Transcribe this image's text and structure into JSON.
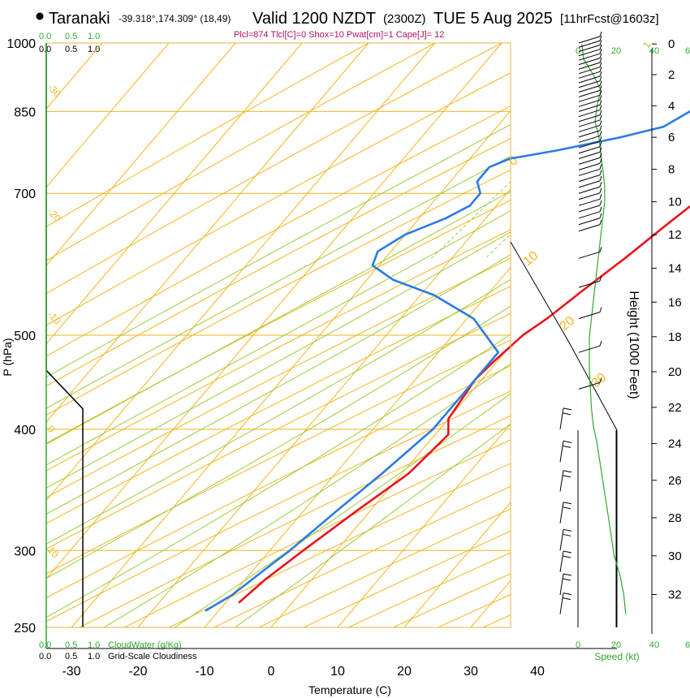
{
  "header": {
    "station": "Taranaki",
    "coords": "-39.318°,174.309° (18,49)",
    "valid": "Valid 1200 NZDT",
    "zulu": "(2300Z)",
    "date": "TUE 5 Aug 2025",
    "forecast": "[11hrFcst@1603z]",
    "params": "Plcl=874 Tlcl[C]=0 Shox=10 Pwat[cm]=1 Cape[J]= 12"
  },
  "colors": {
    "temperature": "#e8141c",
    "dewpoint": "#2b7be3",
    "isotherm": "#f2b51e",
    "dry_adiabat": "#f2b51e",
    "moist_adiabat": "#9bcc3c",
    "mixing_ratio": "#9bcc3c",
    "green_label": "#2ea82e",
    "parcel": "#8a2c8a",
    "cloud": "#000000",
    "params": "#b0115c"
  },
  "chart_data": {
    "type": "line",
    "title": "Taranaki Skew-T",
    "xlabel": "Temperature (C)",
    "ylabel": "P (hPa)",
    "right_axis_label": "Height (1000 Feet)",
    "x_ticks": [
      -30,
      -20,
      -10,
      0,
      10,
      20,
      30,
      40
    ],
    "p_ticks": [
      250,
      300,
      400,
      500,
      700,
      850,
      1000
    ],
    "height_ticks": [
      0,
      2,
      4,
      6,
      8,
      10,
      12,
      14,
      16,
      18,
      20,
      22,
      24,
      26,
      28,
      30,
      32
    ],
    "isotherm_labels": [
      {
        "text": "10",
        "p": 300
      },
      {
        "text": "0",
        "p": 400
      },
      {
        "text": "-10",
        "p": 525
      },
      {
        "text": "-20",
        "p": 670
      },
      {
        "text": "-30",
        "p": 900
      }
    ],
    "dry_adiabat_labels": [
      {
        "text": "0",
        "p": 330
      },
      {
        "text": "10",
        "p": 420
      },
      {
        "text": "20",
        "p": 490
      },
      {
        "text": "30",
        "p": 580
      }
    ],
    "mixing_ratio_labels": [
      "1",
      "2",
      "3",
      "5",
      "8",
      "12",
      "20"
    ],
    "series": [
      {
        "name": "Temperature",
        "points": [
          [
            13,
            1000
          ],
          [
            11,
            980
          ],
          [
            9.5,
            955
          ],
          [
            10,
            935
          ],
          [
            11,
            920
          ],
          [
            11,
            900
          ],
          [
            10,
            875
          ],
          [
            9,
            850
          ],
          [
            9.5,
            820
          ],
          [
            11,
            790
          ],
          [
            11,
            760
          ],
          [
            11,
            720
          ],
          [
            10,
            700
          ],
          [
            8,
            650
          ],
          [
            6,
            600
          ],
          [
            4,
            560
          ],
          [
            2,
            520
          ],
          [
            0.5,
            500
          ],
          [
            -0.5,
            470
          ],
          [
            -1,
            450
          ],
          [
            0,
            410
          ],
          [
            2,
            395
          ],
          [
            1,
            360
          ],
          [
            -2,
            330
          ],
          [
            -5,
            300
          ],
          [
            -7,
            280
          ],
          [
            -8,
            265
          ]
        ]
      },
      {
        "name": "Dewpoint",
        "points": [
          [
            5,
            1000
          ],
          [
            4,
            980
          ],
          [
            4,
            945
          ],
          [
            3,
            935
          ],
          [
            1,
            920
          ],
          [
            -2,
            910
          ],
          [
            -2,
            890
          ],
          [
            -3,
            850
          ],
          [
            -5,
            820
          ],
          [
            -10,
            800
          ],
          [
            -18,
            775
          ],
          [
            -24,
            760
          ],
          [
            -26,
            745
          ],
          [
            -26,
            720
          ],
          [
            -24,
            700
          ],
          [
            -24,
            680
          ],
          [
            -26,
            660
          ],
          [
            -30,
            635
          ],
          [
            -32,
            610
          ],
          [
            -31,
            590
          ],
          [
            -26,
            570
          ],
          [
            -18,
            550
          ],
          [
            -9,
            520
          ],
          [
            -1,
            480
          ],
          [
            -1,
            470
          ],
          [
            -1,
            440
          ],
          [
            -1,
            400
          ],
          [
            -3,
            360
          ],
          [
            -5,
            330
          ],
          [
            -7,
            300
          ],
          [
            -8,
            290
          ],
          [
            -10,
            270
          ],
          [
            -12,
            260
          ]
        ]
      },
      {
        "name": "Parcel",
        "points": [
          [
            13,
            1000
          ],
          [
            11,
            975
          ],
          [
            9,
            950
          ],
          [
            8,
            920
          ]
        ]
      }
    ],
    "wind_profile": {
      "label": "Speed (kt)",
      "axis_ticks": [
        "0",
        "20",
        "40"
      ],
      "speeds": [
        [
          0,
          2
        ],
        [
          1,
          3
        ],
        [
          2,
          8
        ],
        [
          3,
          12
        ],
        [
          4,
          10
        ],
        [
          5,
          9
        ],
        [
          6,
          11
        ],
        [
          7,
          12
        ],
        [
          8,
          13
        ],
        [
          9,
          14
        ],
        [
          10,
          14
        ],
        [
          11,
          13
        ],
        [
          12,
          12
        ],
        [
          13,
          11
        ],
        [
          14,
          10
        ],
        [
          16,
          8
        ],
        [
          18,
          6
        ],
        [
          20,
          6
        ],
        [
          22,
          7
        ],
        [
          23,
          8
        ],
        [
          24,
          10
        ],
        [
          26,
          13
        ],
        [
          28,
          16
        ],
        [
          30,
          19
        ],
        [
          31,
          22
        ],
        [
          32,
          24
        ],
        [
          33,
          25
        ]
      ]
    },
    "cloud_axis": {
      "top_values": [
        "0.0",
        "0.5",
        "1.0"
      ],
      "bottom_values": [
        "0.0",
        "0.5",
        "1.0"
      ],
      "cloud_water_label": "CloudWater (g/Kg)",
      "cloudiness_label": "Grid-Scale Cloudiness",
      "cloudiness_profile": [
        [
          0.0,
          1000
        ],
        [
          0.0,
          500
        ],
        [
          0.0,
          460
        ],
        [
          0.75,
          420
        ],
        [
          0.75,
          250
        ]
      ]
    }
  },
  "labels": {
    "speed_axis_right": "6"
  }
}
